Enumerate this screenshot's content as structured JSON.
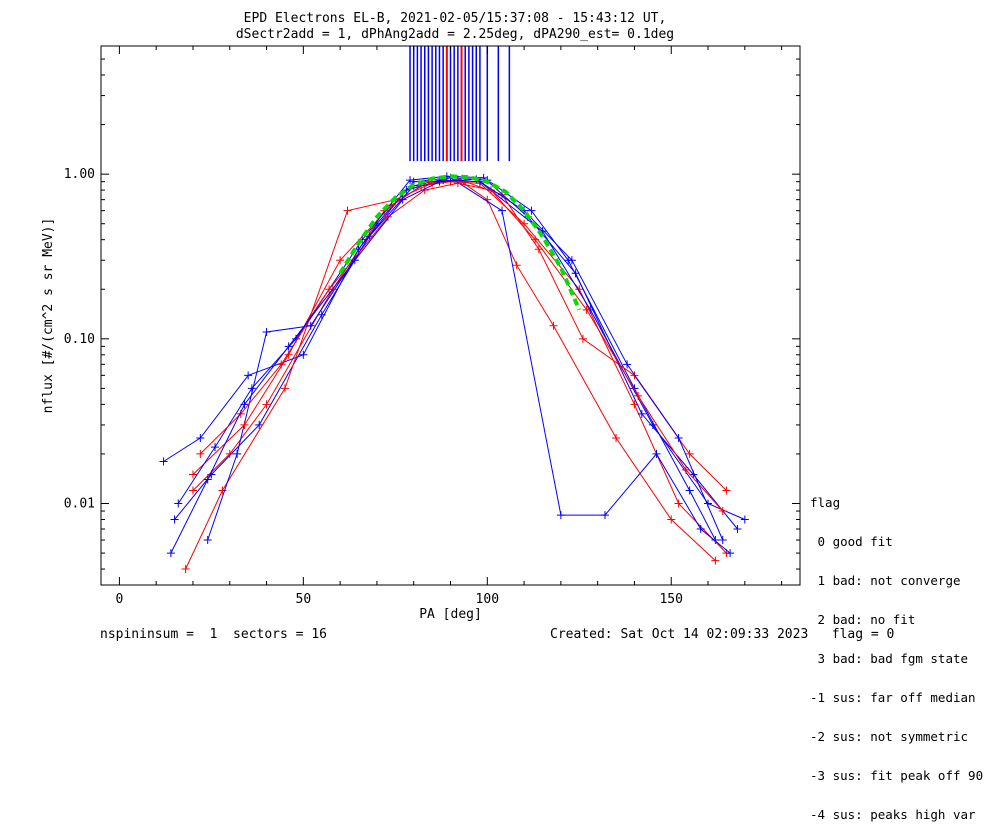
{
  "title_line1": "EPD Electrons EL-B, 2021-02-05/15:37:08 - 15:43:12 UT,",
  "title_line2": "dSectr2add = 1, dPhAng2add = 2.25deg, dPA290_est=   0.1deg",
  "footer_left": "nspininsum =  1  sectors = 16",
  "footer_right": "Created: Sat Oct 14 02:09:33 2023   flag = 0",
  "legend": {
    "title": "flag",
    "items": [
      " 0 good fit",
      " 1 bad: not converge",
      " 2 bad: no fit",
      " 3 bad: bad fgm state",
      "-1 sus: far off median",
      "-2 sus: not symmetric",
      "-3 sus: fit peak off 90",
      "-4 sus: peaks high var"
    ]
  },
  "chart_data": {
    "type": "line",
    "xlabel": "PA [deg]",
    "ylabel": "nflux [#/(cm^2 s sr MeV)]",
    "xlim": [
      -5,
      185
    ],
    "ylim": [
      0.0032,
      6.0
    ],
    "yscale": "log",
    "x_ticks": [
      0,
      50,
      100,
      150
    ],
    "x_tick_labels": [
      "0",
      "50",
      "100",
      "150"
    ],
    "y_ticks": [
      0.01,
      0.1,
      1.0
    ],
    "y_tick_labels": [
      "0.01",
      "0.10",
      "1.00"
    ],
    "colors": {
      "blue": "#0000ff",
      "red": "#ff0000",
      "green": "#00dd00"
    },
    "series": [
      {
        "color": "blue",
        "marker": "plus",
        "x": [
          15,
          25,
          38,
          55,
          70,
          80,
          90,
          100,
          112,
          122,
          140,
          155,
          162
        ],
        "y": [
          0.008,
          0.015,
          0.03,
          0.14,
          0.5,
          0.9,
          0.95,
          0.92,
          0.6,
          0.3,
          0.05,
          0.012,
          0.006
        ]
      },
      {
        "color": "red",
        "marker": "plus",
        "x": [
          20,
          30,
          40,
          58,
          72,
          82,
          90,
          98,
          110,
          125,
          140,
          152,
          165
        ],
        "y": [
          0.012,
          0.02,
          0.04,
          0.2,
          0.6,
          0.85,
          0.9,
          0.88,
          0.5,
          0.2,
          0.04,
          0.01,
          0.005
        ]
      },
      {
        "color": "blue",
        "marker": "plus",
        "x": [
          12,
          22,
          35,
          50,
          65,
          78,
          88,
          98,
          115,
          128,
          145,
          160,
          170
        ],
        "y": [
          0.018,
          0.025,
          0.06,
          0.08,
          0.35,
          0.8,
          0.92,
          0.9,
          0.45,
          0.15,
          0.03,
          0.01,
          0.008
        ]
      },
      {
        "color": "red",
        "marker": "plus",
        "x": [
          18,
          28,
          45,
          62,
          75,
          85,
          92,
          100,
          108,
          118,
          135,
          150,
          162
        ],
        "y": [
          0.004,
          0.012,
          0.05,
          0.6,
          0.7,
          0.88,
          0.93,
          0.7,
          0.28,
          0.12,
          0.025,
          0.008,
          0.0045
        ]
      },
      {
        "color": "blue",
        "marker": "plus",
        "x": [
          24,
          32,
          40,
          52,
          68,
          80,
          90,
          104,
          120,
          132,
          146,
          158,
          166
        ],
        "y": [
          0.006,
          0.02,
          0.11,
          0.12,
          0.42,
          0.85,
          0.95,
          0.6,
          0.0085,
          0.0085,
          0.02,
          0.007,
          0.005
        ]
      },
      {
        "color": "red",
        "marker": "plus",
        "x": [
          20,
          34,
          46,
          60,
          74,
          84,
          94,
          104,
          114,
          126,
          140,
          155,
          165
        ],
        "y": [
          0.015,
          0.03,
          0.08,
          0.3,
          0.65,
          0.9,
          0.9,
          0.75,
          0.35,
          0.1,
          0.06,
          0.02,
          0.012
        ]
      },
      {
        "color": "blue",
        "marker": "plus",
        "x": [
          16,
          26,
          36,
          48,
          66,
          79,
          89,
          99,
          111,
          124,
          142,
          156,
          168
        ],
        "y": [
          0.01,
          0.022,
          0.05,
          0.1,
          0.4,
          0.92,
          0.97,
          0.95,
          0.55,
          0.25,
          0.035,
          0.015,
          0.007
        ]
      },
      {
        "color": "red",
        "marker": "plus",
        "x": [
          22,
          33,
          44,
          57,
          73,
          83,
          92,
          101,
          113,
          127,
          141,
          154,
          164
        ],
        "y": [
          0.02,
          0.035,
          0.07,
          0.2,
          0.55,
          0.8,
          0.88,
          0.8,
          0.4,
          0.15,
          0.045,
          0.016,
          0.009
        ]
      },
      {
        "color": "blue",
        "marker": "plus",
        "x": [
          14,
          24,
          34,
          46,
          64,
          77,
          87,
          97,
          110,
          123,
          138,
          152,
          164
        ],
        "y": [
          0.005,
          0.014,
          0.04,
          0.09,
          0.3,
          0.7,
          0.9,
          0.93,
          0.6,
          0.3,
          0.07,
          0.025,
          0.006
        ]
      }
    ],
    "fit_curve": {
      "name": "",
      "color": "green",
      "x": [
        60,
        65,
        70,
        75,
        80,
        85,
        90,
        95,
        100,
        105,
        110,
        115,
        120,
        125
      ],
      "y": [
        0.25,
        0.38,
        0.55,
        0.72,
        0.86,
        0.94,
        0.97,
        0.96,
        0.9,
        0.78,
        0.6,
        0.42,
        0.27,
        0.15
      ]
    },
    "vertical_lines": {
      "blue_x": [
        79,
        80,
        81,
        82,
        83,
        84,
        85,
        86,
        87,
        88,
        89,
        90,
        91,
        92,
        93,
        94,
        95,
        96,
        97,
        98,
        100,
        103,
        106
      ],
      "red_x": [
        89,
        93
      ],
      "y_from": 1.2,
      "y_to": 6.0
    }
  }
}
